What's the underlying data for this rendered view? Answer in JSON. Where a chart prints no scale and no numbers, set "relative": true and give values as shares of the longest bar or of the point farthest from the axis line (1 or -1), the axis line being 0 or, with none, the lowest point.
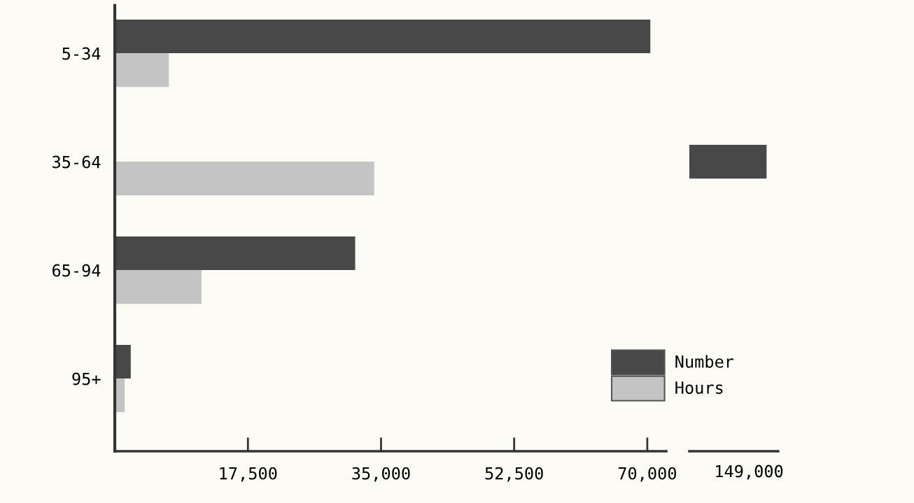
{
  "chart_data": [
    {
      "type": "bar",
      "orientation": "horizontal",
      "categories": [
        "5-34",
        "35-64",
        "65-94",
        "95+"
      ],
      "series": [
        {
          "name": "Number",
          "color": "#484848",
          "values": [
            70400,
            null,
            31600,
            2100
          ]
        },
        {
          "name": "Hours",
          "color": "#c4c4c4",
          "values": [
            7100,
            34100,
            11400,
            1300
          ]
        }
      ],
      "xlim": [
        0,
        72500
      ],
      "xticks": [
        {
          "value": 17500,
          "label": "17,500"
        },
        {
          "value": 35000,
          "label": "35,000"
        },
        {
          "value": 52500,
          "label": "52,500"
        },
        {
          "value": 70000,
          "label": "70,000"
        }
      ],
      "legend": "bottom right",
      "grid": false
    },
    {
      "type": "bar",
      "orientation": "horizontal",
      "relative": true,
      "categories": [
        null,
        null,
        null,
        null
      ],
      "series": [
        {
          "color": "#484848",
          "values": [
            null,
            1,
            null,
            null
          ]
        }
      ],
      "annotations": [
        "149,000"
      ]
    }
  ]
}
